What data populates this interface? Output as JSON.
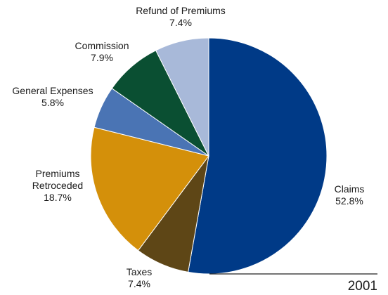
{
  "chart_data": {
    "type": "pie",
    "year_label": "2001",
    "slices": [
      {
        "label": [
          "Claims"
        ],
        "value": 52.8,
        "value_label": "52.8%",
        "color": "#003a87"
      },
      {
        "label": [
          "Taxes"
        ],
        "value": 7.4,
        "value_label": "7.4%",
        "color": "#5e4616"
      },
      {
        "label": [
          "Premiums",
          "Retroceded"
        ],
        "value": 18.7,
        "value_label": "18.7%",
        "color": "#d4900a"
      },
      {
        "label": [
          "General Expenses"
        ],
        "value": 5.8,
        "value_label": "5.8%",
        "color": "#4a74b4"
      },
      {
        "label": [
          "Commission"
        ],
        "value": 7.9,
        "value_label": "7.9%",
        "color": "#0a4f32"
      },
      {
        "label": [
          "Refund of Premiums"
        ],
        "value": 7.4,
        "value_label": "7.4%",
        "color": "#a8b9d9"
      }
    ]
  }
}
